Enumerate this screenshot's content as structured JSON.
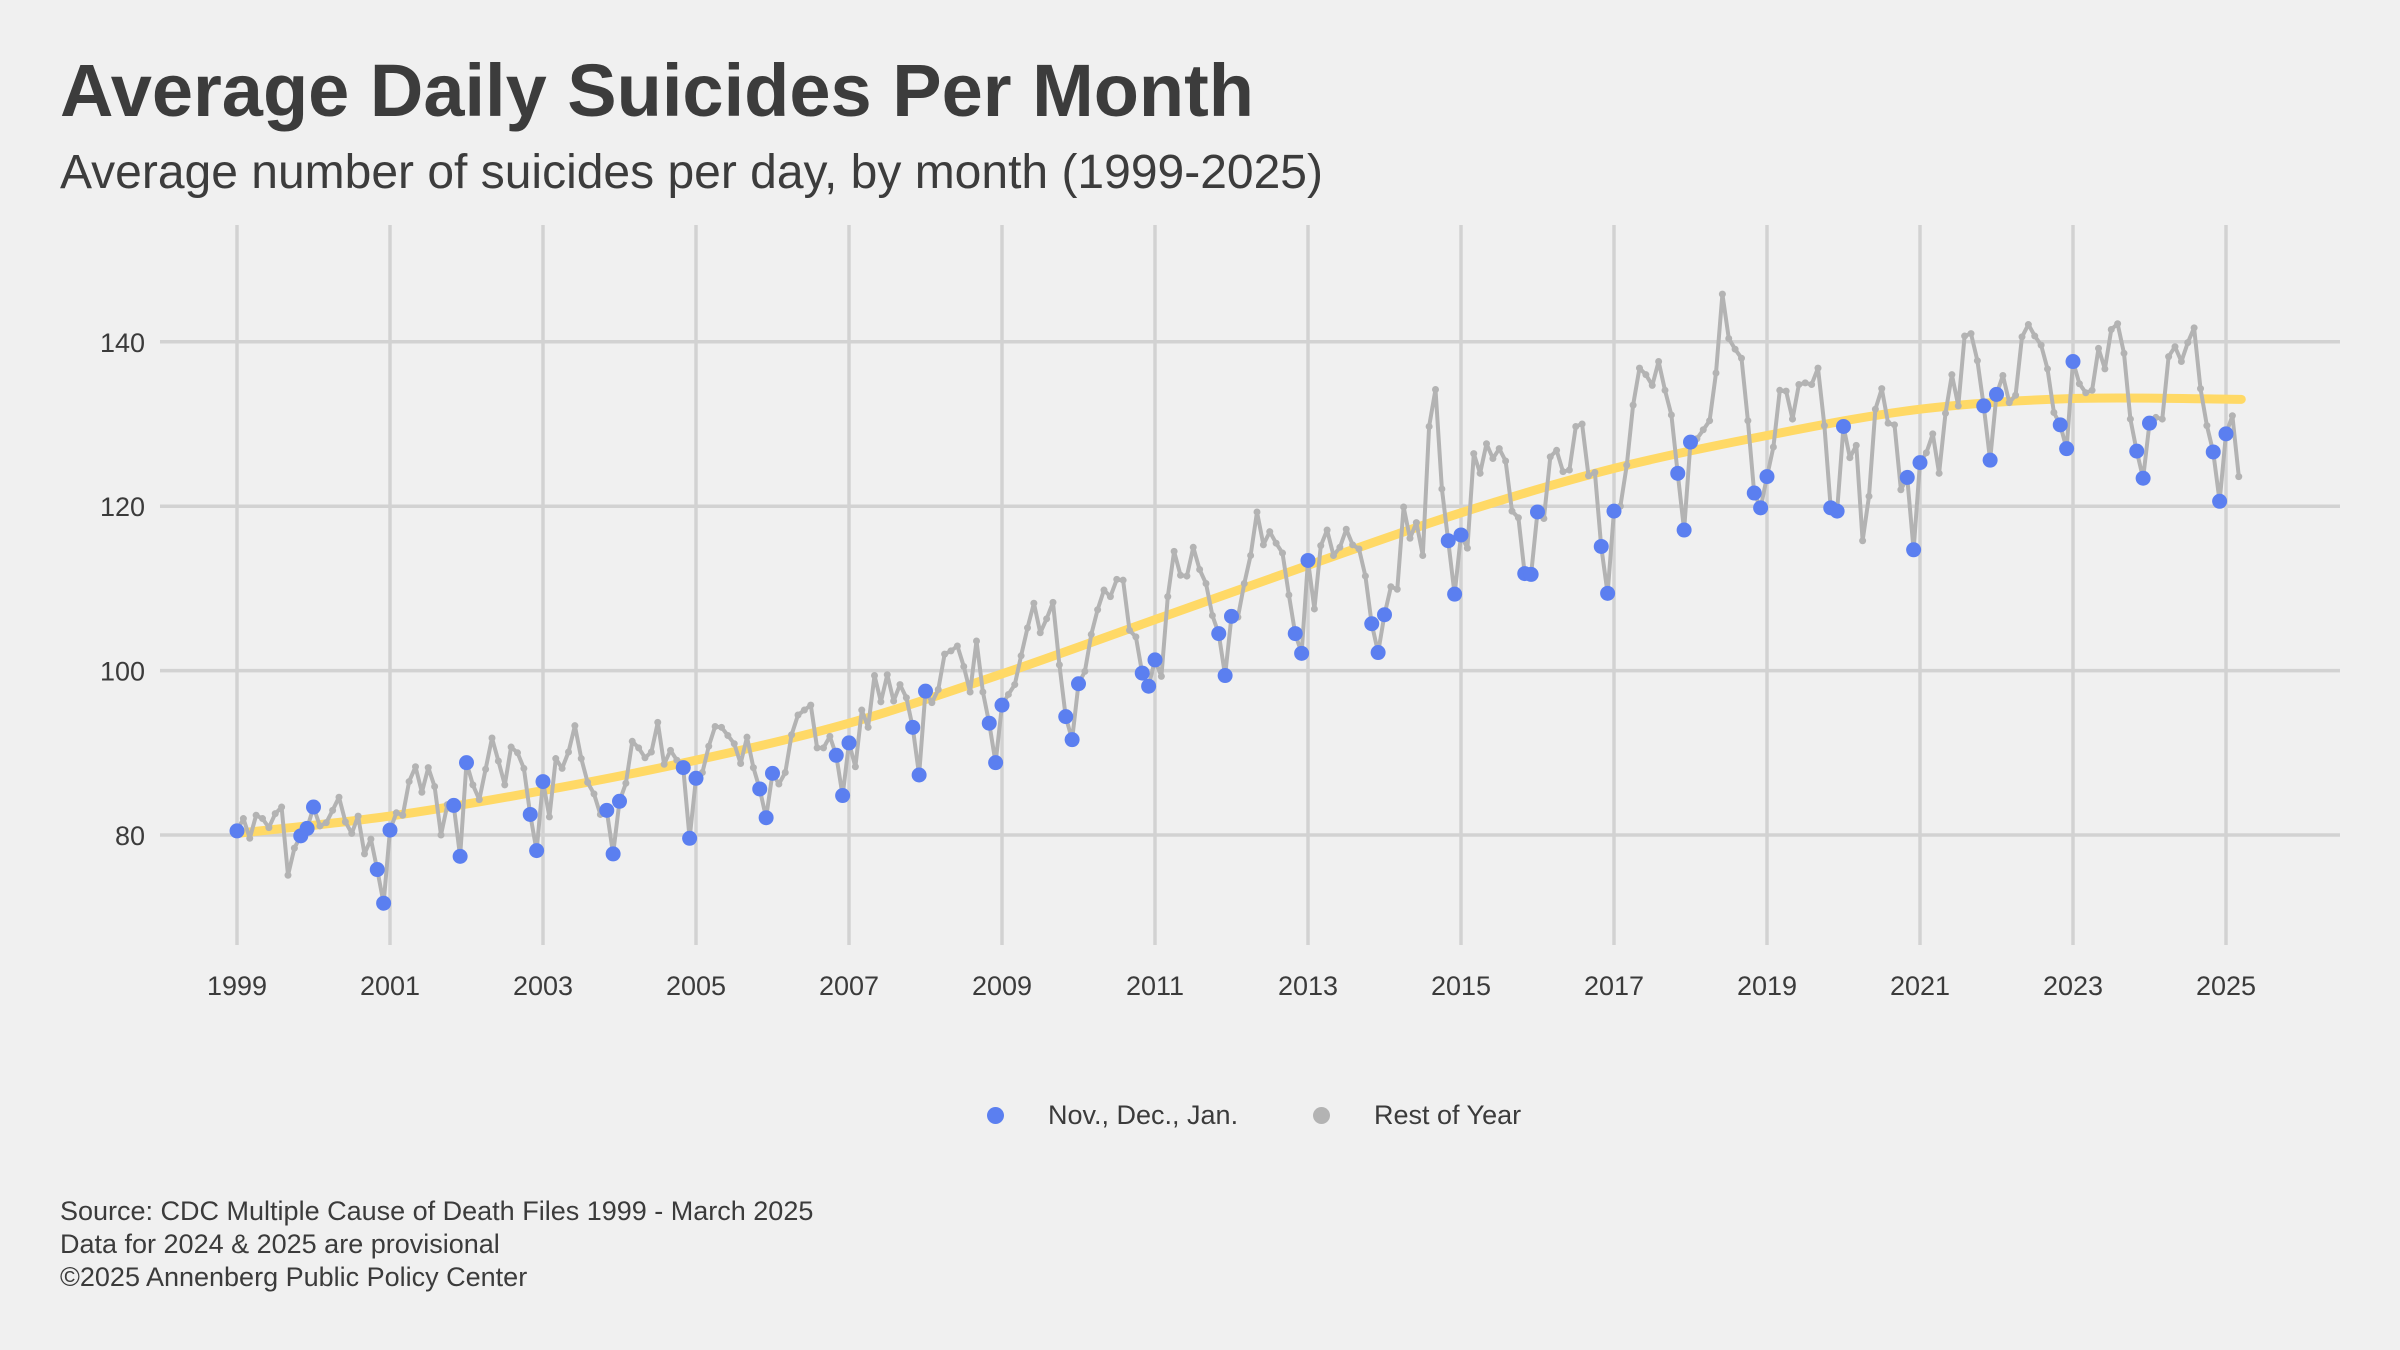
{
  "title": "Average Daily Suicides Per Month",
  "subtitle": "Average number of suicides per day, by month (1999-2025)",
  "legend": [
    {
      "label": "Nov., Dec., Jan.",
      "color": "#5b7ff0"
    },
    {
      "label": "Rest of Year",
      "color": "#b3b3b3"
    }
  ],
  "caption": [
    "Source: CDC Multiple Cause of Death Files 1999 - March 2025",
    "Data for 2024 & 2025 are provisional",
    "©2025 Annenberg Public Policy Center"
  ],
  "chart_data": {
    "type": "line",
    "x_unit": "year (monthly series Jan 1999 - Mar 2025)",
    "x_ticks": [
      "1999",
      "2001",
      "2003",
      "2005",
      "2007",
      "2009",
      "2011",
      "2013",
      "2015",
      "2017",
      "2019",
      "2021",
      "2023",
      "2025"
    ],
    "y_ticks": [
      80,
      100,
      120,
      140
    ],
    "ylim": [
      65,
      152
    ],
    "grid": true,
    "legend_position": "bottom",
    "colors": {
      "winter": "#5b7ff0",
      "rest": "#b3b3b3",
      "trend": "#ffd966",
      "grid": "#d2d2d2"
    },
    "monthly_by_year": [
      {
        "year": 1999,
        "values": [
          80.5,
          82.0,
          79.6,
          82.4,
          82.0,
          80.9,
          82.6,
          83.4,
          75.1,
          78.4,
          79.9,
          80.8
        ]
      },
      {
        "year": 2000,
        "values": [
          83.4,
          81.1,
          81.5,
          83.0,
          84.6,
          81.6,
          80.2,
          82.3,
          77.7,
          79.5,
          75.8,
          71.7
        ]
      },
      {
        "year": 2001,
        "values": [
          80.6,
          82.7,
          82.4,
          86.5,
          88.3,
          85.2,
          88.2,
          85.9,
          80.0,
          83.7,
          83.6,
          77.4
        ]
      },
      {
        "year": 2002,
        "values": [
          88.8,
          86.1,
          84.3,
          88.0,
          91.8,
          89.0,
          86.1,
          90.7,
          90.0,
          88.1,
          82.5,
          78.1
        ]
      },
      {
        "year": 2003,
        "values": [
          86.5,
          82.2,
          89.3,
          88.1,
          90.1,
          93.3,
          89.3,
          86.4,
          85.0,
          82.5,
          83.0,
          77.7
        ]
      },
      {
        "year": 2004,
        "values": [
          84.1,
          86.3,
          91.4,
          90.6,
          89.4,
          90.1,
          93.7,
          88.6,
          90.3,
          89.1,
          88.2,
          79.6
        ]
      },
      {
        "year": 2005,
        "values": [
          86.9,
          87.6,
          90.8,
          93.2,
          93.1,
          92.1,
          91.1,
          88.7,
          91.9,
          88.2,
          85.6,
          82.1
        ]
      },
      {
        "year": 2006,
        "values": [
          87.5,
          86.2,
          87.6,
          92.2,
          94.6,
          95.2,
          95.8,
          90.6,
          90.6,
          92.0,
          89.7,
          84.8
        ]
      },
      {
        "year": 2007,
        "values": [
          91.2,
          88.3,
          95.2,
          93.1,
          99.4,
          96.2,
          99.5,
          96.3,
          98.3,
          96.7,
          93.1,
          87.3
        ]
      },
      {
        "year": 2008,
        "values": [
          97.5,
          96.1,
          97.7,
          102.0,
          102.4,
          103.0,
          100.5,
          97.4,
          103.6,
          97.4,
          93.6,
          88.8
        ]
      },
      {
        "year": 2009,
        "values": [
          95.8,
          97.1,
          98.3,
          101.8,
          105.2,
          108.2,
          104.6,
          106.3,
          108.3,
          100.7,
          94.4,
          91.6
        ]
      },
      {
        "year": 2010,
        "values": [
          98.4,
          99.9,
          104.4,
          107.4,
          109.8,
          109.0,
          111.1,
          111.0,
          104.9,
          104.1,
          99.7,
          98.1
        ]
      },
      {
        "year": 2011,
        "values": [
          101.3,
          99.3,
          109.0,
          114.5,
          111.6,
          111.5,
          115.0,
          112.3,
          110.6,
          106.7,
          104.5,
          99.4
        ]
      },
      {
        "year": 2012,
        "values": [
          106.6,
          106.5,
          110.6,
          114.0,
          119.3,
          115.3,
          116.9,
          115.5,
          114.3,
          109.2,
          104.5,
          102.1
        ]
      },
      {
        "year": 2013,
        "values": [
          113.4,
          107.5,
          115.2,
          117.1,
          114.0,
          115.0,
          117.2,
          115.3,
          114.8,
          111.5,
          105.7,
          102.2
        ]
      },
      {
        "year": 2014,
        "values": [
          106.8,
          110.2,
          109.9,
          119.9,
          116.1,
          118.0,
          114.0,
          129.7,
          134.2,
          122.1,
          115.8,
          109.3
        ]
      },
      {
        "year": 2015,
        "values": [
          116.5,
          114.9,
          126.4,
          124.0,
          127.6,
          125.8,
          127.0,
          125.5,
          119.4,
          118.6,
          111.8,
          111.7
        ]
      },
      {
        "year": 2016,
        "values": [
          119.3,
          118.5,
          126.0,
          126.8,
          124.2,
          124.4,
          129.7,
          130.0,
          123.7,
          124.1,
          115.1,
          109.4
        ]
      },
      {
        "year": 2017,
        "values": [
          119.4,
          120.0,
          125.0,
          132.3,
          136.8,
          136.0,
          134.7,
          137.6,
          134.1,
          131.1,
          124.0,
          117.1
        ]
      },
      {
        "year": 2018,
        "values": [
          127.8,
          128.2,
          129.3,
          130.4,
          136.2,
          145.8,
          140.4,
          139.1,
          138.0,
          130.4,
          121.6,
          119.8
        ]
      },
      {
        "year": 2019,
        "values": [
          123.6,
          127.2,
          134.1,
          134.0,
          130.6,
          134.8,
          135.0,
          134.8,
          136.8,
          129.8,
          119.8,
          119.4
        ]
      },
      {
        "year": 2020,
        "values": [
          129.7,
          125.9,
          127.4,
          115.8,
          121.2,
          131.8,
          134.3,
          130.1,
          129.9,
          122.0,
          123.5,
          114.7
        ]
      },
      {
        "year": 2021,
        "values": [
          125.3,
          126.5,
          128.8,
          124.0,
          131.3,
          136.0,
          132.2,
          140.7,
          141.0,
          137.7,
          132.2,
          125.6
        ]
      },
      {
        "year": 2022,
        "values": [
          133.6,
          135.9,
          132.6,
          133.5,
          140.6,
          142.1,
          140.7,
          139.6,
          136.7,
          131.4,
          129.9,
          127.0
        ]
      },
      {
        "year": 2023,
        "values": [
          137.6,
          134.9,
          133.8,
          134.1,
          139.2,
          136.7,
          141.5,
          142.2,
          138.6,
          130.6,
          126.7,
          123.4
        ]
      },
      {
        "year": 2024,
        "values": [
          130.1,
          130.8,
          130.6,
          138.2,
          139.4,
          137.6,
          139.9,
          141.7,
          134.3,
          129.8,
          126.6,
          120.6
        ]
      },
      {
        "year": 2025,
        "values": [
          128.8,
          131.0,
          123.6
        ]
      }
    ],
    "series": [
      {
        "name": "Nov., Dec., Jan.",
        "months": [
          11,
          12,
          1
        ]
      },
      {
        "name": "Rest of Year",
        "months": [
          2,
          3,
          4,
          5,
          6,
          7,
          8,
          9,
          10
        ]
      }
    ],
    "trend": {
      "x": [
        1999,
        2001,
        2003,
        2005,
        2007,
        2009,
        2011,
        2013,
        2015,
        2017,
        2019,
        2021,
        2023,
        2025.2
      ],
      "y": [
        80.2,
        82.3,
        85.4,
        89.1,
        93.6,
        99.6,
        106.2,
        112.8,
        119.2,
        124.6,
        128.6,
        131.8,
        133.1,
        133.0
      ]
    }
  }
}
